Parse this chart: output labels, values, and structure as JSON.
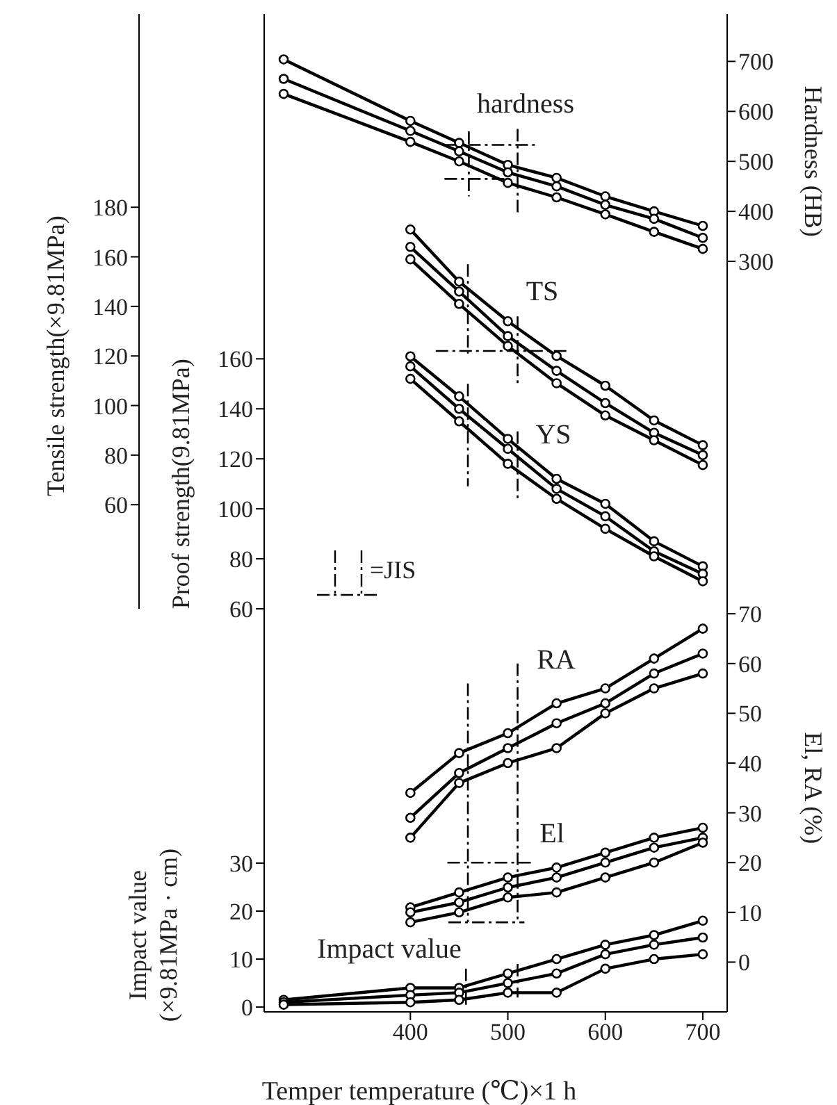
{
  "chart_data": [
    {
      "type": "line",
      "ylabel": "Proof strength(9.81MPa)",
      "y2label": "Hardness (HB)",
      "y3label": "Tensile strength(×9.81MPa)",
      "x": [
        400,
        450,
        500,
        550,
        600,
        650,
        700
      ],
      "xlim": [
        250,
        725
      ],
      "xticks": [
        400,
        500,
        600,
        700
      ],
      "tick_labels": "y",
      "ylim": [
        60,
        298
      ],
      "yticks": [
        60,
        80,
        100,
        120,
        140,
        160
      ],
      "y2lim": [
        -395,
        795
      ],
      "y2ticks": [
        300,
        400,
        500,
        600,
        700
      ],
      "y3lim": [
        18,
        258
      ],
      "y3ticks": [
        60,
        80,
        100,
        120,
        140,
        160,
        180
      ],
      "marker": "circle",
      "series": [
        {
          "color": "#000000",
          "axis": "y2",
          "x": [
            270,
            400,
            450,
            500,
            550,
            600,
            650,
            700
          ],
          "values": [
            704,
            581,
            537,
            493,
            467,
            430,
            400,
            371
          ]
        },
        {
          "color": "#000000",
          "axis": "y2",
          "x": [
            270,
            400,
            450,
            500,
            550,
            600,
            650,
            700
          ],
          "values": [
            665,
            561,
            520,
            478,
            450,
            413,
            385,
            347
          ]
        },
        {
          "color": "#000000",
          "axis": "y2",
          "x": [
            270,
            400,
            450,
            500,
            550,
            600,
            650,
            700
          ],
          "values": [
            635,
            539,
            500,
            457,
            428,
            394,
            359,
            325
          ]
        },
        {
          "color": "#000000",
          "axis": "y3",
          "values": [
            171,
            150,
            134,
            120,
            108,
            94,
            84
          ]
        },
        {
          "color": "#000000",
          "axis": "y3",
          "values": [
            164,
            146,
            128,
            114,
            101,
            89,
            80
          ]
        },
        {
          "color": "#000000",
          "axis": "y3",
          "values": [
            159,
            141,
            124,
            109,
            96,
            86,
            76
          ]
        },
        {
          "color": "#000000",
          "values": [
            161,
            145,
            128,
            112,
            102,
            87,
            77
          ]
        },
        {
          "color": "#000000",
          "values": [
            157,
            140,
            124,
            108,
            97,
            83,
            74
          ]
        },
        {
          "color": "#000000",
          "values": [
            152,
            135,
            118,
            104,
            92,
            81,
            71
          ]
        },
        {
          "color": "#000000",
          "axis": "y2",
          "marker": "none",
          "line_style": "dashed",
          "x": [
            460,
            460
          ],
          "values": [
            560,
            430
          ]
        },
        {
          "color": "#000000",
          "axis": "y2",
          "marker": "none",
          "line_style": "dashed",
          "x": [
            510,
            510
          ],
          "values": [
            565,
            395
          ]
        },
        {
          "color": "#000000",
          "axis": "y2",
          "marker": "none",
          "line_style": "dashed",
          "x": [
            435,
            530
          ],
          "values": [
            533,
            533
          ]
        },
        {
          "color": "#000000",
          "axis": "y2",
          "marker": "none",
          "line_style": "dashed",
          "x": [
            435,
            500
          ],
          "values": [
            465,
            465
          ]
        },
        {
          "color": "#000000",
          "axis": "y3",
          "marker": "none",
          "line_style": "dashed",
          "x": [
            459,
            459
          ],
          "values": [
            157,
            121
          ]
        },
        {
          "color": "#000000",
          "axis": "y3",
          "marker": "none",
          "line_style": "dashed",
          "x": [
            510,
            510
          ],
          "values": [
            136,
            109
          ]
        },
        {
          "color": "#000000",
          "axis": "y3",
          "marker": "none",
          "line_style": "dashed",
          "x": [
            426,
            560
          ],
          "values": [
            122,
            122
          ]
        },
        {
          "color": "#000000",
          "marker": "none",
          "line_style": "dashed",
          "x": [
            459,
            459
          ],
          "values": [
            150,
            109
          ]
        },
        {
          "color": "#000000",
          "marker": "none",
          "line_style": "dashed",
          "x": [
            510,
            510
          ],
          "values": [
            131,
            103
          ]
        }
      ],
      "annotations": [
        "hardness",
        "TS",
        "YS",
        "=JIS"
      ]
    },
    {
      "type": "line",
      "xlabel": "Temper temperature (℃)×1 h",
      "ylabel": "Impact value\n(×9.81MPa · cm)",
      "y2label": "El, RA (%)",
      "x": [
        400,
        450,
        500,
        550,
        600,
        650,
        700
      ],
      "xlim": [
        250,
        725
      ],
      "xticks": [
        400,
        500,
        600,
        700
      ],
      "ylim": [
        -1,
        83
      ],
      "yticks": [
        0,
        10,
        20,
        30
      ],
      "y2lim": [
        -10,
        71
      ],
      "y2ticks": [
        0,
        10,
        20,
        30,
        40,
        50,
        60,
        70
      ],
      "marker": "circle",
      "series": [
        {
          "color": "#000000",
          "axis": "y2",
          "values": [
            34,
            42,
            46,
            52,
            55,
            61,
            67
          ]
        },
        {
          "color": "#000000",
          "axis": "y2",
          "values": [
            29,
            38,
            43,
            48,
            52,
            58,
            62
          ]
        },
        {
          "color": "#000000",
          "axis": "y2",
          "values": [
            25,
            36,
            40,
            43,
            50,
            55,
            58
          ]
        },
        {
          "color": "#000000",
          "axis": "y2",
          "values": [
            11,
            14,
            17,
            19,
            22,
            25,
            27
          ]
        },
        {
          "color": "#000000",
          "axis": "y2",
          "values": [
            10,
            12,
            15,
            17,
            20,
            23,
            25
          ]
        },
        {
          "color": "#000000",
          "axis": "y2",
          "values": [
            8,
            10,
            13,
            14,
            17,
            20,
            24
          ]
        },
        {
          "color": "#000000",
          "x": [
            270,
            400,
            450,
            500,
            550,
            600,
            650,
            700
          ],
          "values": [
            1.5,
            4,
            4,
            7,
            10,
            13,
            15,
            18
          ]
        },
        {
          "color": "#000000",
          "x": [
            270,
            400,
            450,
            500,
            550,
            600,
            650,
            700
          ],
          "values": [
            1,
            2.5,
            3,
            5,
            7,
            11,
            13,
            14.5
          ]
        },
        {
          "color": "#000000",
          "x": [
            270,
            400,
            450,
            500,
            550,
            600,
            650,
            700
          ],
          "values": [
            0.5,
            1,
            1.5,
            3,
            3,
            8,
            10,
            11
          ]
        },
        {
          "color": "#000000",
          "axis": "y2",
          "marker": "none",
          "line_style": "dashed",
          "x": [
            459,
            459
          ],
          "values": [
            56,
            8
          ]
        },
        {
          "color": "#000000",
          "axis": "y2",
          "marker": "none",
          "line_style": "dashed",
          "x": [
            510,
            510
          ],
          "values": [
            60,
            8
          ]
        },
        {
          "color": "#000000",
          "axis": "y2",
          "marker": "none",
          "line_style": "dashed",
          "x": [
            438,
            527
          ],
          "values": [
            20,
            20
          ]
        },
        {
          "color": "#000000",
          "axis": "y2",
          "marker": "none",
          "line_style": "dashed",
          "x": [
            439,
            517
          ],
          "values": [
            8,
            8
          ]
        },
        {
          "color": "#000000",
          "marker": "none",
          "line_style": "dashed",
          "x": [
            457,
            457
          ],
          "values": [
            8,
            0
          ]
        },
        {
          "color": "#000000",
          "marker": "none",
          "line_style": "dashed",
          "x": [
            510,
            510
          ],
          "values": [
            9,
            2
          ]
        }
      ],
      "annotations": [
        "RA",
        "El",
        "Impact value"
      ]
    }
  ]
}
